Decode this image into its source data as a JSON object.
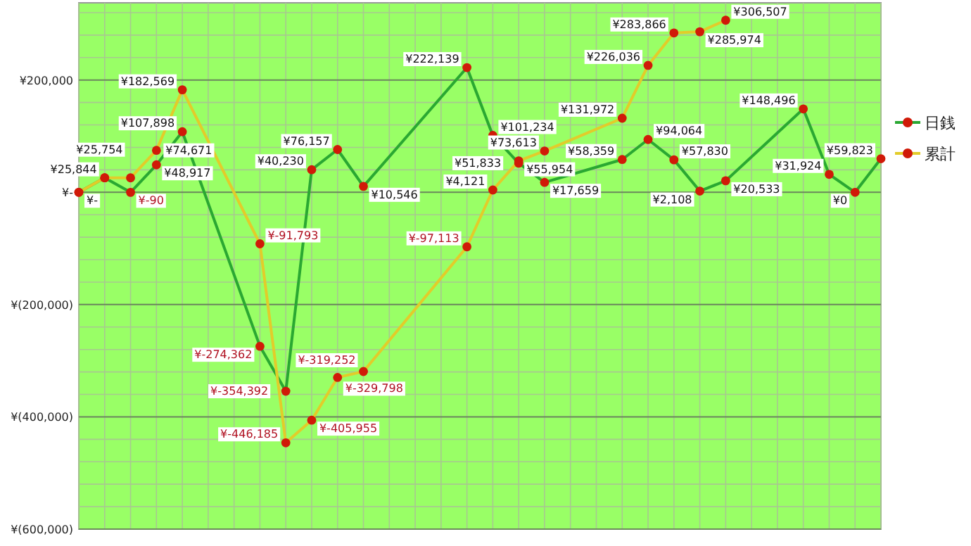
{
  "chart_data": {
    "type": "line",
    "categories": [
      null,
      null,
      null,
      null,
      null,
      null,
      null,
      null,
      null,
      null,
      null,
      null,
      null,
      null,
      null,
      null,
      null,
      null,
      null,
      null,
      null,
      null,
      null,
      null,
      null,
      null,
      null,
      null,
      null,
      null,
      null,
      null
    ],
    "series": [
      {
        "name": "日銭",
        "color": "#2aa832",
        "values": [
          0,
          25844,
          -90,
          48917,
          107898,
          null,
          null,
          -274362,
          -354392,
          40230,
          76157,
          10546,
          null,
          null,
          null,
          222139,
          101234,
          51833,
          17659,
          null,
          null,
          58359,
          94064,
          57830,
          2108,
          20533,
          null,
          null,
          148496,
          31924,
          0,
          59823
        ],
        "value_labels": [
          "¥-",
          "¥25,844",
          "¥-90",
          "¥48,917",
          "¥107,898",
          null,
          null,
          "¥-274,362",
          "¥-354,392",
          "¥40,230",
          "¥76,157",
          "¥10,546",
          null,
          null,
          null,
          "¥222,139",
          "¥101,234",
          "¥51,833",
          "¥17,659",
          null,
          null,
          "¥58,359",
          "¥94,064",
          "¥57,830",
          "¥2,108",
          "¥20,533",
          null,
          null,
          "¥148,496",
          "¥31,924",
          "¥0",
          "¥59,823"
        ]
      },
      {
        "name": "累計",
        "color": "#e2cc2a",
        "values": [
          0,
          25844,
          25754,
          74671,
          182569,
          null,
          null,
          -91793,
          -446185,
          -405955,
          -329798,
          -319252,
          null,
          null,
          null,
          -97113,
          4121,
          55954,
          73613,
          null,
          null,
          131972,
          226036,
          283866,
          285974,
          306507,
          null,
          null,
          null,
          null,
          null,
          null
        ],
        "value_labels": [
          null,
          null,
          "¥25,754",
          "¥74,671",
          "¥182,569",
          null,
          null,
          "¥-91,793",
          "¥-446,185",
          "¥-405,955",
          "¥-329,798",
          "¥-319,252",
          null,
          null,
          null,
          "¥-97,113",
          "¥4,121",
          "¥55,954",
          "¥73,613",
          null,
          null,
          "¥131,972",
          "¥226,036",
          "¥283,866",
          "¥285,974",
          "¥306,507",
          null,
          null,
          null,
          null,
          null,
          null
        ]
      }
    ],
    "ylim": [
      -600000,
      337500
    ],
    "yticks": [
      {
        "value": -600000,
        "label": "¥(600,000)"
      },
      {
        "value": -400000,
        "label": "¥(400,000)"
      },
      {
        "value": -200000,
        "label": "¥(200,000)"
      },
      {
        "value": 0,
        "label": "¥-"
      },
      {
        "value": 200000,
        "label": "¥200,000"
      }
    ],
    "grid": true,
    "legend": "right",
    "marker": "circle",
    "line_style": "solid"
  }
}
